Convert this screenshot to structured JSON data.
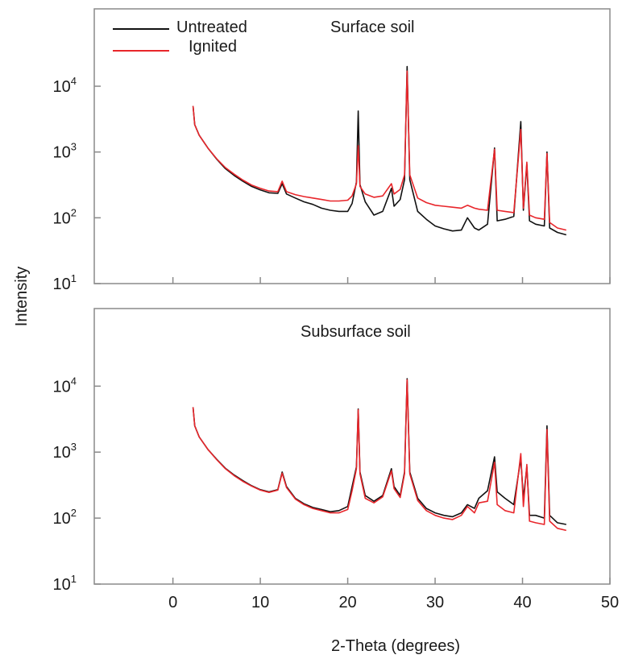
{
  "chart_data": {
    "type": "line",
    "x_label": "2-Theta (degrees)",
    "y_label": "Intensity",
    "x_ticks": [
      "0",
      "10",
      "20",
      "30",
      "40",
      "50"
    ],
    "xlim": [
      -9,
      50
    ],
    "y_scale": "log",
    "y_ticks": [
      {
        "base": "10",
        "exp": "1"
      },
      {
        "base": "10",
        "exp": "2"
      },
      {
        "base": "10",
        "exp": "3"
      },
      {
        "base": "10",
        "exp": "4"
      }
    ],
    "ylim": [
      10,
      150000
    ],
    "legend": {
      "position": "top-left",
      "entries": [
        {
          "label": "Untreated",
          "color": "#111111"
        },
        {
          "label": "Ignited",
          "color": "#e8262b"
        }
      ]
    },
    "panels": [
      {
        "title": "Surface soil",
        "series": [
          {
            "name": "Untreated",
            "color": "#111111",
            "points": [
              [
                2.3,
                5000
              ],
              [
                2.5,
                2600
              ],
              [
                3,
                1800
              ],
              [
                4,
                1150
              ],
              [
                5,
                780
              ],
              [
                6,
                560
              ],
              [
                7,
                440
              ],
              [
                8,
                360
              ],
              [
                9,
                300
              ],
              [
                10,
                265
              ],
              [
                11,
                240
              ],
              [
                12,
                235
              ],
              [
                12.5,
                330
              ],
              [
                13,
                230
              ],
              [
                14,
                200
              ],
              [
                15,
                175
              ],
              [
                16,
                160
              ],
              [
                17,
                140
              ],
              [
                18,
                130
              ],
              [
                19,
                125
              ],
              [
                20,
                125
              ],
              [
                20.5,
                165
              ],
              [
                21,
                350
              ],
              [
                21.2,
                4200
              ],
              [
                21.4,
                320
              ],
              [
                22,
                175
              ],
              [
                23,
                110
              ],
              [
                24,
                125
              ],
              [
                25,
                280
              ],
              [
                25.3,
                150
              ],
              [
                26,
                190
              ],
              [
                26.5,
                380
              ],
              [
                26.8,
                20000
              ],
              [
                27.1,
                380
              ],
              [
                28,
                125
              ],
              [
                29,
                95
              ],
              [
                30,
                75
              ],
              [
                31,
                68
              ],
              [
                32,
                63
              ],
              [
                33,
                65
              ],
              [
                33.7,
                100
              ],
              [
                34.5,
                70
              ],
              [
                35,
                65
              ],
              [
                36,
                80
              ],
              [
                36.8,
                1150
              ],
              [
                37.1,
                90
              ],
              [
                38,
                95
              ],
              [
                39,
                105
              ],
              [
                39.8,
                2900
              ],
              [
                40.1,
                130
              ],
              [
                40.5,
                650
              ],
              [
                40.8,
                90
              ],
              [
                41.5,
                80
              ],
              [
                42.5,
                75
              ],
              [
                42.8,
                1000
              ],
              [
                43.1,
                70
              ],
              [
                44,
                60
              ],
              [
                45,
                55
              ]
            ]
          },
          {
            "name": "Ignited",
            "color": "#e8262b",
            "points": [
              [
                2.3,
                5000
              ],
              [
                2.5,
                2600
              ],
              [
                3,
                1800
              ],
              [
                4,
                1150
              ],
              [
                5,
                790
              ],
              [
                6,
                580
              ],
              [
                7,
                460
              ],
              [
                8,
                375
              ],
              [
                9,
                315
              ],
              [
                10,
                280
              ],
              [
                11,
                255
              ],
              [
                12,
                250
              ],
              [
                12.5,
                360
              ],
              [
                13,
                250
              ],
              [
                14,
                225
              ],
              [
                15,
                210
              ],
              [
                16,
                200
              ],
              [
                17,
                190
              ],
              [
                18,
                180
              ],
              [
                19,
                180
              ],
              [
                20,
                185
              ],
              [
                20.5,
                215
              ],
              [
                21,
                330
              ],
              [
                21.2,
                1250
              ],
              [
                21.4,
                300
              ],
              [
                22,
                230
              ],
              [
                23,
                205
              ],
              [
                24,
                215
              ],
              [
                25,
                330
              ],
              [
                25.3,
                230
              ],
              [
                26,
                270
              ],
              [
                26.5,
                450
              ],
              [
                26.8,
                17000
              ],
              [
                27.1,
                450
              ],
              [
                28,
                200
              ],
              [
                29,
                170
              ],
              [
                30,
                155
              ],
              [
                31,
                150
              ],
              [
                32,
                145
              ],
              [
                33,
                140
              ],
              [
                33.7,
                155
              ],
              [
                34.5,
                140
              ],
              [
                35,
                135
              ],
              [
                36,
                130
              ],
              [
                36.8,
                1100
              ],
              [
                37.1,
                130
              ],
              [
                38,
                125
              ],
              [
                39,
                120
              ],
              [
                39.8,
                2200
              ],
              [
                40.1,
                140
              ],
              [
                40.5,
                700
              ],
              [
                40.8,
                110
              ],
              [
                41.5,
                100
              ],
              [
                42.5,
                95
              ],
              [
                42.8,
                950
              ],
              [
                43.1,
                85
              ],
              [
                44,
                70
              ],
              [
                45,
                65
              ]
            ]
          }
        ]
      },
      {
        "title": "Subsurface soil",
        "series": [
          {
            "name": "Untreated",
            "color": "#111111",
            "points": [
              [
                2.3,
                4800
              ],
              [
                2.5,
                2500
              ],
              [
                3,
                1700
              ],
              [
                4,
                1100
              ],
              [
                5,
                780
              ],
              [
                6,
                570
              ],
              [
                7,
                450
              ],
              [
                8,
                370
              ],
              [
                9,
                310
              ],
              [
                10,
                270
              ],
              [
                11,
                250
              ],
              [
                12,
                270
              ],
              [
                12.5,
                500
              ],
              [
                13,
                300
              ],
              [
                14,
                200
              ],
              [
                15,
                165
              ],
              [
                16,
                145
              ],
              [
                17,
                135
              ],
              [
                18,
                125
              ],
              [
                19,
                130
              ],
              [
                20,
                150
              ],
              [
                20.5,
                300
              ],
              [
                21,
                600
              ],
              [
                21.2,
                4500
              ],
              [
                21.4,
                500
              ],
              [
                22,
                220
              ],
              [
                23,
                180
              ],
              [
                24,
                220
              ],
              [
                25,
                560
              ],
              [
                25.3,
                300
              ],
              [
                26,
                220
              ],
              [
                26.5,
                500
              ],
              [
                26.8,
                13000
              ],
              [
                27.1,
                500
              ],
              [
                28,
                200
              ],
              [
                29,
                140
              ],
              [
                30,
                120
              ],
              [
                31,
                110
              ],
              [
                32,
                105
              ],
              [
                33,
                120
              ],
              [
                33.7,
                160
              ],
              [
                34.5,
                140
              ],
              [
                35,
                200
              ],
              [
                36,
                260
              ],
              [
                36.8,
                850
              ],
              [
                37.1,
                250
              ],
              [
                38,
                200
              ],
              [
                39,
                160
              ],
              [
                39.8,
                800
              ],
              [
                40.1,
                200
              ],
              [
                40.5,
                600
              ],
              [
                40.8,
                110
              ],
              [
                41.5,
                110
              ],
              [
                42.5,
                100
              ],
              [
                42.8,
                2500
              ],
              [
                43.1,
                110
              ],
              [
                44,
                85
              ],
              [
                45,
                80
              ]
            ]
          },
          {
            "name": "Ignited",
            "color": "#e8262b",
            "points": [
              [
                2.3,
                4800
              ],
              [
                2.5,
                2500
              ],
              [
                3,
                1700
              ],
              [
                4,
                1100
              ],
              [
                5,
                770
              ],
              [
                6,
                560
              ],
              [
                7,
                440
              ],
              [
                8,
                360
              ],
              [
                9,
                305
              ],
              [
                10,
                265
              ],
              [
                11,
                245
              ],
              [
                12,
                265
              ],
              [
                12.5,
                480
              ],
              [
                13,
                290
              ],
              [
                14,
                195
              ],
              [
                15,
                160
              ],
              [
                16,
                140
              ],
              [
                17,
                130
              ],
              [
                18,
                120
              ],
              [
                19,
                120
              ],
              [
                20,
                135
              ],
              [
                20.5,
                260
              ],
              [
                21,
                560
              ],
              [
                21.2,
                4400
              ],
              [
                21.4,
                470
              ],
              [
                22,
                200
              ],
              [
                23,
                170
              ],
              [
                24,
                210
              ],
              [
                25,
                520
              ],
              [
                25.3,
                280
              ],
              [
                26,
                205
              ],
              [
                26.5,
                470
              ],
              [
                26.8,
                12500
              ],
              [
                27.1,
                470
              ],
              [
                28,
                185
              ],
              [
                29,
                130
              ],
              [
                30,
                110
              ],
              [
                31,
                100
              ],
              [
                32,
                95
              ],
              [
                33,
                110
              ],
              [
                33.7,
                150
              ],
              [
                34.5,
                120
              ],
              [
                35,
                170
              ],
              [
                36,
                180
              ],
              [
                36.8,
                700
              ],
              [
                37.1,
                160
              ],
              [
                38,
                130
              ],
              [
                39,
                120
              ],
              [
                39.8,
                950
              ],
              [
                40.1,
                150
              ],
              [
                40.5,
                650
              ],
              [
                40.8,
                90
              ],
              [
                41.5,
                85
              ],
              [
                42.5,
                80
              ],
              [
                42.8,
                2200
              ],
              [
                43.1,
                90
              ],
              [
                44,
                70
              ],
              [
                45,
                65
              ]
            ]
          }
        ]
      }
    ]
  }
}
